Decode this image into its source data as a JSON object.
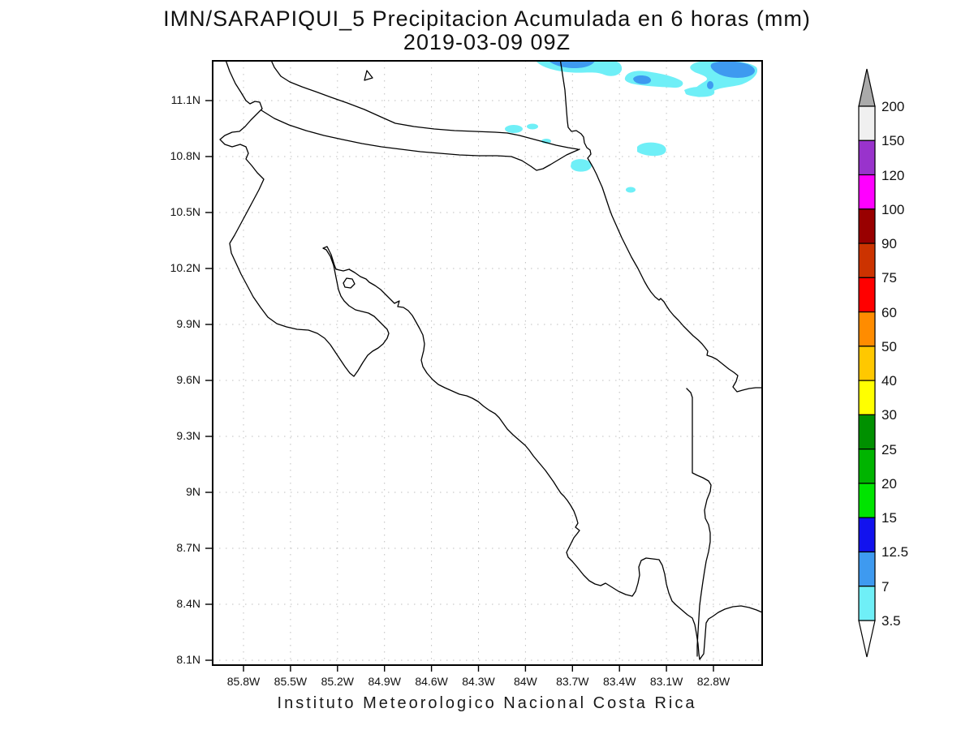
{
  "title": {
    "line1": "IMN/SARAPIQUI_5 Precipitacion Acumulada en 6 horas (mm)",
    "line2": "2019-03-09 09Z"
  },
  "footer": "Instituto Meteorologico Nacional Costa Rica",
  "axes": {
    "y_ticks": [
      "11.1N",
      "10.8N",
      "10.5N",
      "10.2N",
      "9.9N",
      "9.6N",
      "9.3N",
      "9N",
      "8.7N",
      "8.4N",
      "8.1N"
    ],
    "x_ticks": [
      "85.8W",
      "85.5W",
      "85.2W",
      "84.9W",
      "84.6W",
      "84.3W",
      "84W",
      "83.7W",
      "83.4W",
      "83.1W",
      "82.8W"
    ],
    "grid_style": "dotted, every 0.3 degrees"
  },
  "palette": {
    "band_3_5_to_7": "#6FEFF7",
    "band_7_to_12_5": "#3E9AF0",
    "grid_gray": "#BFBFBF",
    "coast_black": "#000000",
    "top_arrow_gray": "#AAAAAA",
    "bottom_arrow_white": "#FFFFFF"
  },
  "colorbar": {
    "segments": [
      {
        "label": "200",
        "color": "#F0F0F0"
      },
      {
        "label": "150",
        "color": "#9933CC"
      },
      {
        "label": "120",
        "color": "#FF00FF"
      },
      {
        "label": "100",
        "color": "#990000"
      },
      {
        "label": "90",
        "color": "#CC3300"
      },
      {
        "label": "75",
        "color": "#FF0000"
      },
      {
        "label": "60",
        "color": "#FF8C00"
      },
      {
        "label": "50",
        "color": "#FFC800"
      },
      {
        "label": "40",
        "color": "#FFFF00"
      },
      {
        "label": "30",
        "color": "#009000"
      },
      {
        "label": "25",
        "color": "#00B400"
      },
      {
        "label": "20",
        "color": "#00E400"
      },
      {
        "label": "15",
        "color": "#1212EE"
      },
      {
        "label": "12.5",
        "color": "#3E9AF0"
      },
      {
        "label": "7",
        "color": "#6FEFF7"
      }
    ],
    "bottom_label": "3.5"
  },
  "chart_data": {
    "type": "filled_contour_map",
    "title": "IMN/SARAPIQUI_5 Precipitacion Acumulada en 6 horas (mm)",
    "valid_time": "2019-03-09 09Z",
    "variable": "Precipitacion Acumulada en 6 horas",
    "units": "mm",
    "region": "Costa Rica",
    "lon_range_deg_west": [
      86.0,
      82.5
    ],
    "lat_range_deg_north": [
      8.08,
      11.3
    ],
    "lat_tick_labels": [
      "11.1N",
      "10.8N",
      "10.5N",
      "10.2N",
      "9.9N",
      "9.6N",
      "9.3N",
      "9N",
      "8.7N",
      "8.4N",
      "8.1N"
    ],
    "lon_tick_labels": [
      "85.8W",
      "85.5W",
      "85.2W",
      "84.9W",
      "84.6W",
      "84.3W",
      "84W",
      "83.7W",
      "83.4W",
      "83.1W",
      "82.8W"
    ],
    "contour_levels_mm": [
      3.5,
      7,
      12.5,
      15,
      20,
      25,
      30,
      40,
      50,
      60,
      75,
      90,
      100,
      120,
      150,
      200
    ],
    "band_colors_low_to_high": [
      "#6FEFF7",
      "#3E9AF0",
      "#1212EE",
      "#00E400",
      "#00B400",
      "#009000",
      "#FFFF00",
      "#FFC800",
      "#FF8C00",
      "#FF0000",
      "#CC3300",
      "#990000",
      "#FF00FF",
      "#9933CC",
      "#F0F0F0",
      "#AAAAAA"
    ],
    "legend_position": "right vertical colorbar with overflow arrows",
    "grid": "dotted graticule every 0.3 degrees",
    "precipitation_features": [
      {
        "lon": -83.7,
        "lat": 11.27,
        "band_mm": "3.5-7",
        "core_band_mm": "7-12.5",
        "note": "elongated band along northern map edge"
      },
      {
        "lon": -83.15,
        "lat": 11.2,
        "band_mm": "3.5-7",
        "core_band_mm": "7-12.5",
        "note": "oval cell near northern edge"
      },
      {
        "lon": -82.65,
        "lat": 11.22,
        "band_mm": "3.5-7",
        "core_band_mm": "7-12.5",
        "note": "largest cell, northeast corner, with SW-trailing tail"
      },
      {
        "lon": -84.05,
        "lat": 10.93,
        "band_mm": "3.5-7",
        "note": "small specks west of Caribbean coast"
      },
      {
        "lon": -83.85,
        "lat": 10.86,
        "band_mm": "3.5-7",
        "note": "small speck"
      },
      {
        "lon": -83.34,
        "lat": 10.87,
        "band_mm": "3.5-7",
        "note": "elongated patch offshore Caribbean"
      },
      {
        "lon": -83.7,
        "lat": 10.78,
        "band_mm": "3.5-7",
        "note": "coastal patch at San Juan delta"
      },
      {
        "lon": -83.33,
        "lat": 10.62,
        "band_mm": "3.5-7",
        "note": "small spot offshore"
      }
    ],
    "map_layers": [
      "Costa Rica / Nicaragua / Panama coastlines",
      "country borders",
      "Lake Nicaragua shore",
      "islands (Lake island, Chira)"
    ]
  }
}
